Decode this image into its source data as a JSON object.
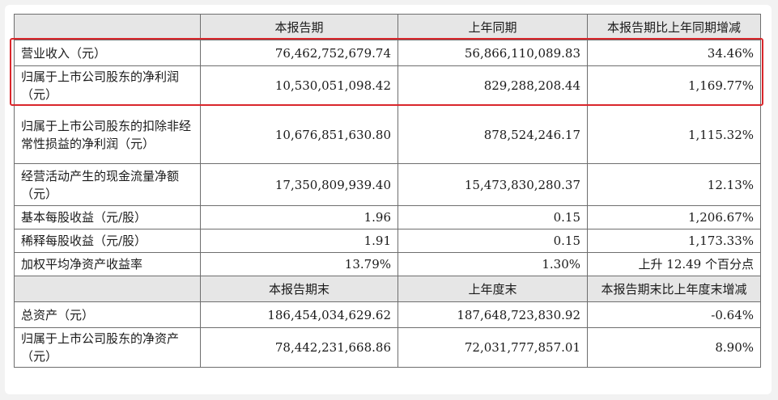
{
  "header_current": [
    "本报告期",
    "上年同期",
    "本报告期比上年同期增减"
  ],
  "rows_period": [
    {
      "label": "营业收入（元）",
      "current": "76,462,752,679.74",
      "previous": "56,866,110,089.83",
      "change": "34.46%"
    },
    {
      "label": "归属于上市公司股东的净利润（元）",
      "current": "10,530,051,098.42",
      "previous": "829,288,208.44",
      "change": "1,169.77%"
    },
    {
      "label": "归属于上市公司股东的扣除非经常性损益的净利润（元）",
      "current": "10,676,851,630.80",
      "previous": "878,524,246.17",
      "change": "1,115.32%"
    },
    {
      "label": "经营活动产生的现金流量净额（元）",
      "current": "17,350,809,939.40",
      "previous": "15,473,830,280.37",
      "change": "12.13%"
    },
    {
      "label": "基本每股收益（元/股）",
      "current": "1.96",
      "previous": "0.15",
      "change": "1,206.67%"
    },
    {
      "label": "稀释每股收益（元/股）",
      "current": "1.91",
      "previous": "0.15",
      "change": "1,173.33%"
    },
    {
      "label": "加权平均净资产收益率",
      "current": "13.79%",
      "previous": "1.30%",
      "change": "上升 12.49 个百分点"
    }
  ],
  "header_end": [
    "本报告期末",
    "上年度末",
    "本报告期末比上年度末增减"
  ],
  "rows_end": [
    {
      "label": "总资产（元）",
      "current": "186,454,034,629.62",
      "previous": "187,648,723,830.92",
      "change": "-0.64%"
    },
    {
      "label": "归属于上市公司股东的净资产（元）",
      "current": "78,442,231,668.86",
      "previous": "72,031,777,857.01",
      "change": "8.90%"
    }
  ],
  "highlight_color": "#d9262b"
}
